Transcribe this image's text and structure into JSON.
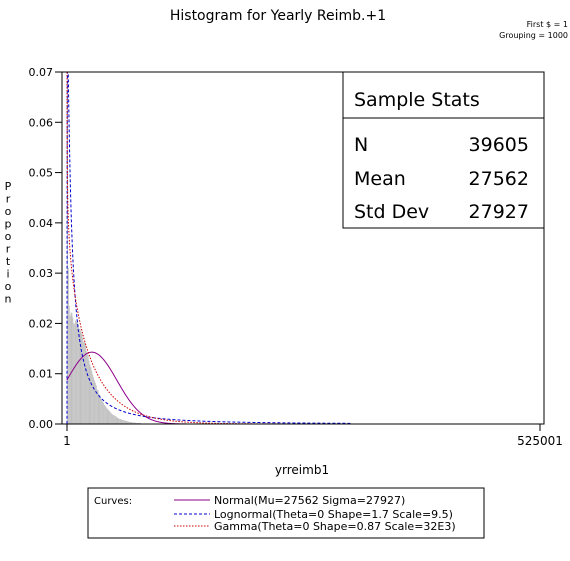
{
  "chart_data": {
    "type": "histogram",
    "title": "Histogram for Yearly Reimb.+1",
    "note_lines": [
      "First $ = 1",
      "Grouping = 1000"
    ],
    "xlabel": "yrreimb1",
    "ylabel": "Proportion",
    "xlim": [
      1,
      525001
    ],
    "ylim": [
      0,
      0.07
    ],
    "x_ticks": [
      "1",
      "525001"
    ],
    "y_ticks": [
      "0.00",
      "0.01",
      "0.02",
      "0.03",
      "0.04",
      "0.05",
      "0.06",
      "0.07"
    ],
    "y_tick_values": [
      0,
      0.01,
      0.02,
      0.03,
      0.04,
      0.05,
      0.06,
      0.07
    ],
    "bin_width": 1000,
    "histogram": {
      "start": 1,
      "values": [
        0.068,
        0.031,
        0.0235,
        0.0215,
        0.0222,
        0.022,
        0.0212,
        0.0201,
        0.0199,
        0.0206,
        0.0203,
        0.0206,
        0.0198,
        0.0189,
        0.019,
        0.0184,
        0.0179,
        0.0172,
        0.0163,
        0.0162,
        0.0158,
        0.0145,
        0.014,
        0.0136,
        0.0126,
        0.0118,
        0.0113,
        0.0106,
        0.0099,
        0.0093,
        0.0087,
        0.0082,
        0.0077,
        0.0069,
        0.0067,
        0.006,
        0.0057,
        0.0052,
        0.0049,
        0.0045,
        0.0042,
        0.0038,
        0.0036,
        0.0033,
        0.0031,
        0.0029,
        0.0027,
        0.0025,
        0.0023,
        0.0021,
        0.0019,
        0.0018,
        0.0017,
        0.0016,
        0.0015,
        0.0013,
        0.0012,
        0.0011,
        0.001,
        0.001,
        0.0009,
        0.0008,
        0.0008,
        0.0007,
        0.0007,
        0.0006,
        0.0006,
        0.0005,
        0.0005,
        0.0004,
        0.0004,
        0.0004,
        0.0003,
        0.0003,
        0.0003,
        0.0003,
        0.0002,
        0.0002,
        0.0002,
        0.0002,
        0.0002,
        0.0002,
        0.0001,
        0.0001,
        0.0001,
        0.0001,
        0.0001,
        0.0001,
        0.0001,
        0.0001,
        0.0001,
        0.0001,
        0.0001,
        0.0001,
        0.0001,
        0.0001,
        0.0001,
        0.0001,
        0.0001,
        0.0001
      ]
    },
    "stats_box": {
      "title": "Sample Stats",
      "rows": [
        {
          "label": "N",
          "value": "39605"
        },
        {
          "label": "Mean",
          "value": "27562"
        },
        {
          "label": "Std Dev",
          "value": "27927"
        }
      ]
    },
    "curves": [
      {
        "name": "Normal(Mu=27562 Sigma=27927)",
        "dist": "normal",
        "mu": 27562,
        "sigma": 27927,
        "color": "#8b008b"
      },
      {
        "name": "Lognormal(Theta=0 Shape=1.7 Scale=9.5)",
        "dist": "lognormal",
        "theta": 0,
        "shape": 1.7,
        "scale": 9.5,
        "color": "#0000cc"
      },
      {
        "name": "Gamma(Theta=0 Shape=0.87 Scale=32E3)",
        "dist": "gamma",
        "theta": 0,
        "shape": 0.87,
        "scale": 32000,
        "color": "#cc0000"
      }
    ],
    "legend": {
      "heading": "Curves:",
      "position": "bottom"
    },
    "histogram_color": "#c0c0c0"
  }
}
